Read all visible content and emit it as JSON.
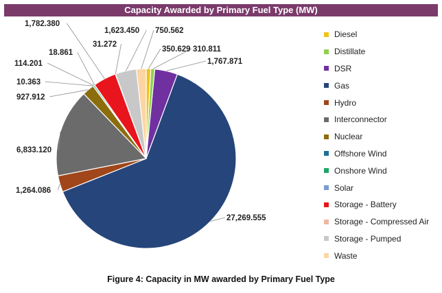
{
  "chart_data": {
    "type": "pie",
    "title": "Capacity Awarded by Primary Fuel Type (MW)",
    "caption": "Figure 4: Capacity in MW awarded by Primary Fuel Type",
    "legend_position": "right",
    "slices": [
      {
        "name": "Diesel",
        "value": 350.629,
        "label": "350.629",
        "color": "#f2c21b"
      },
      {
        "name": "Distillate",
        "value": 310.811,
        "label": "310.811",
        "color": "#92d050"
      },
      {
        "name": "DSR",
        "value": 1767.871,
        "label": "1,767.871",
        "color": "#7030a0"
      },
      {
        "name": "Gas",
        "value": 27269.555,
        "label": "27,269.555",
        "color": "#26457a"
      },
      {
        "name": "Hydro",
        "value": 1264.086,
        "label": "1,264.086",
        "color": "#a0461a"
      },
      {
        "name": "Interconnector",
        "value": 6833.12,
        "label": "6,833.120",
        "color": "#6b6b6b"
      },
      {
        "name": "Nuclear",
        "value": 927.912,
        "label": "927.912",
        "color": "#8c6d0d"
      },
      {
        "name": "Offshore Wind",
        "value": 10.363,
        "label": "10.363",
        "color": "#1f6f99"
      },
      {
        "name": "Onshore Wind",
        "value": 114.201,
        "label": "114.201",
        "color": "#1aa865"
      },
      {
        "name": "Solar",
        "value": 18.861,
        "label": "18.861",
        "color": "#7a9cd0"
      },
      {
        "name": "Storage - Battery",
        "value": 1782.38,
        "label": "1,782.380",
        "color": "#e8151c"
      },
      {
        "name": "Storage - Compressed Air",
        "value": 31.272,
        "label": "31.272",
        "color": "#f0b8a0"
      },
      {
        "name": "Storage - Pumped",
        "value": 1623.45,
        "label": "1,623.450",
        "color": "#c8c8c8"
      },
      {
        "name": "Waste",
        "value": 750.562,
        "label": "750.562",
        "color": "#fcd5a4"
      }
    ]
  }
}
